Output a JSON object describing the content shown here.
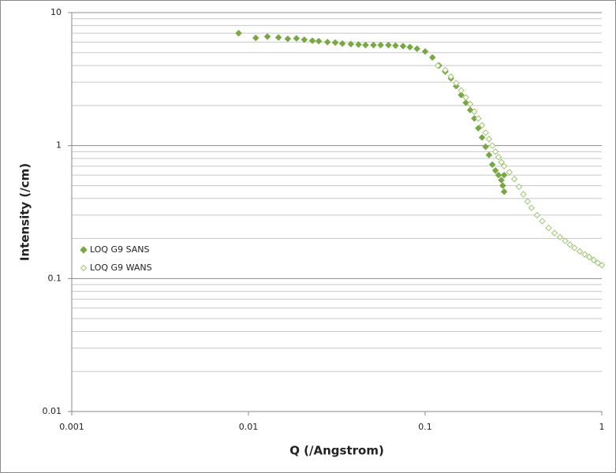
{
  "chart_data": {
    "type": "scatter",
    "xlabel": "Q  (/Angstrom)",
    "ylabel": "Intensity  (/cm)",
    "xscale": "log",
    "yscale": "log",
    "xlim": [
      0.001,
      1
    ],
    "ylim": [
      0.01,
      10
    ],
    "xticks": [
      0.001,
      0.01,
      0.1,
      1
    ],
    "yticks": [
      0.01,
      0.1,
      1,
      10
    ],
    "yminorticks": [
      0.02,
      0.03,
      0.04,
      0.05,
      0.06,
      0.07,
      0.08,
      0.09,
      0.2,
      0.3,
      0.4,
      0.5,
      0.6,
      0.7,
      0.8,
      0.9,
      2,
      3,
      4,
      5,
      6,
      7,
      8,
      9
    ],
    "grid": true,
    "legend": "left",
    "series": [
      {
        "name": "LOQ G9 SANS",
        "color": "#77a843",
        "marker": "filled-diamond",
        "x": [
          0.0088,
          0.011,
          0.0128,
          0.0148,
          0.0167,
          0.0187,
          0.0207,
          0.023,
          0.025,
          0.028,
          0.031,
          0.034,
          0.038,
          0.042,
          0.046,
          0.051,
          0.056,
          0.062,
          0.068,
          0.075,
          0.082,
          0.09,
          0.1,
          0.11,
          0.12,
          0.13,
          0.14,
          0.15,
          0.16,
          0.17,
          0.18,
          0.19,
          0.2,
          0.21,
          0.22,
          0.23,
          0.24,
          0.25,
          0.26,
          0.27,
          0.28,
          0.275,
          0.28
        ],
        "values": [
          7.0,
          6.45,
          6.6,
          6.5,
          6.35,
          6.4,
          6.25,
          6.15,
          6.1,
          6.0,
          5.95,
          5.85,
          5.8,
          5.75,
          5.7,
          5.7,
          5.7,
          5.7,
          5.65,
          5.6,
          5.5,
          5.35,
          5.1,
          4.6,
          4.0,
          3.6,
          3.2,
          2.8,
          2.4,
          2.1,
          1.85,
          1.6,
          1.35,
          1.15,
          0.98,
          0.85,
          0.72,
          0.65,
          0.6,
          0.55,
          0.6,
          0.5,
          0.45
        ]
      },
      {
        "name": "LOQ G9 WANS",
        "color": "#9dc46f",
        "marker": "open-diamond",
        "x": [
          0.118,
          0.13,
          0.14,
          0.15,
          0.16,
          0.17,
          0.18,
          0.19,
          0.2,
          0.21,
          0.22,
          0.23,
          0.24,
          0.25,
          0.26,
          0.27,
          0.28,
          0.3,
          0.32,
          0.34,
          0.36,
          0.38,
          0.4,
          0.43,
          0.46,
          0.5,
          0.54,
          0.58,
          0.62,
          0.66,
          0.7,
          0.75,
          0.8,
          0.85,
          0.9,
          0.95,
          1.0
        ],
        "values": [
          4.0,
          3.7,
          3.3,
          2.95,
          2.6,
          2.3,
          2.05,
          1.8,
          1.6,
          1.42,
          1.25,
          1.12,
          1.0,
          0.9,
          0.82,
          0.75,
          0.7,
          0.63,
          0.56,
          0.49,
          0.43,
          0.38,
          0.34,
          0.3,
          0.27,
          0.24,
          0.22,
          0.205,
          0.192,
          0.18,
          0.17,
          0.16,
          0.152,
          0.145,
          0.138,
          0.131,
          0.126
        ]
      }
    ]
  }
}
